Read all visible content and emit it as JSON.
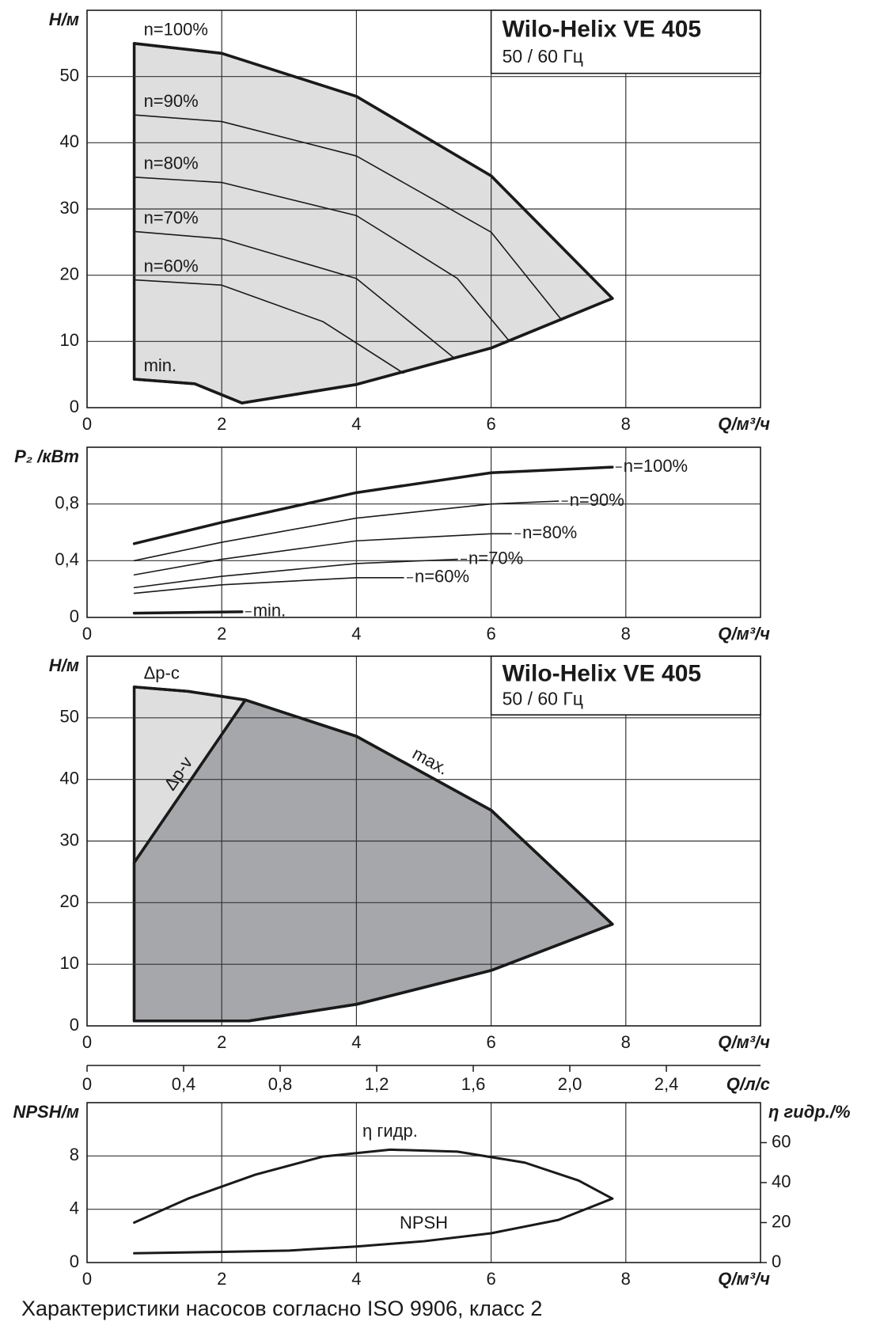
{
  "footer": "Характеристики насосов согласно ISO 9906, класс 2",
  "chart_data": [
    {
      "type": "line",
      "title": "Wilo-Helix VE 405",
      "subtitle": "50 / 60 Гц",
      "xlabel": "Q/м³/ч",
      "ylabel": "H/м",
      "xlim": [
        0,
        10
      ],
      "xticks": [
        0,
        2,
        4,
        6,
        8
      ],
      "ylim": [
        0,
        60
      ],
      "yticks": [
        0,
        10,
        20,
        30,
        40,
        50
      ],
      "grid": true,
      "line_color": "#1a1a1a",
      "areas": [
        {
          "color": "#dedede",
          "parts": [
            {
              "series": 0
            },
            {
              "series": 6,
              "reverse": true
            },
            {
              "series": 5,
              "reverse": true
            }
          ]
        }
      ],
      "series": [
        {
          "name": "n=100%",
          "label_pos": "start",
          "width": 3.5,
          "x": [
            0.7,
            2,
            4,
            6,
            7.8
          ],
          "values": [
            55,
            53.5,
            47,
            35,
            16.5
          ]
        },
        {
          "name": "n=90%",
          "label_pos": "start",
          "width": 1.6,
          "x": [
            0.7,
            2,
            4,
            6,
            7.05
          ],
          "values": [
            44.2,
            43.2,
            38,
            26.5,
            13.2
          ]
        },
        {
          "name": "n=80%",
          "label_pos": "start",
          "width": 1.6,
          "x": [
            0.7,
            2,
            4,
            5.5,
            6.25
          ],
          "values": [
            34.8,
            34,
            29,
            19.5,
            10.3
          ]
        },
        {
          "name": "n=70%",
          "label_pos": "start",
          "width": 1.6,
          "x": [
            0.7,
            2,
            4,
            5.45
          ],
          "values": [
            26.6,
            25.5,
            19.5,
            7.5
          ]
        },
        {
          "name": "n=60%",
          "label_pos": "start",
          "width": 1.6,
          "x": [
            0.7,
            2,
            3.5,
            4.7
          ],
          "values": [
            19.3,
            18.5,
            13,
            5.2
          ]
        },
        {
          "name": "min.",
          "label_pos": "start",
          "width": 3.5,
          "x": [
            0.7,
            1.6,
            2.3
          ],
          "values": [
            4.3,
            3.6,
            0.7
          ]
        },
        {
          "width": 3.5,
          "x": [
            2.3,
            4,
            6,
            7.8
          ],
          "values": [
            0.7,
            3.5,
            9,
            16.5
          ]
        }
      ]
    },
    {
      "type": "line",
      "xlabel": "Q/м³/ч",
      "ylabel": "P₂ /кВт",
      "xlim": [
        0,
        10
      ],
      "xticks": [
        0,
        2,
        4,
        6,
        8
      ],
      "ylim": [
        0,
        1.2
      ],
      "yticks": [
        0,
        {
          "value": 0.4,
          "label": "0,4"
        },
        {
          "value": 0.8,
          "label": "0,8"
        }
      ],
      "grid": true,
      "line_color": "#1a1a1a",
      "series": [
        {
          "name": "n=100%",
          "label_pos": "end",
          "width": 3.5,
          "x": [
            0.7,
            2,
            4,
            6,
            7.8
          ],
          "values": [
            0.52,
            0.67,
            0.88,
            1.02,
            1.06
          ]
        },
        {
          "name": "n=90%",
          "label_pos": "end",
          "width": 1.6,
          "x": [
            0.7,
            2,
            4,
            6,
            7.0
          ],
          "values": [
            0.4,
            0.53,
            0.7,
            0.8,
            0.82
          ]
        },
        {
          "name": "n=80%",
          "label_pos": "end",
          "width": 1.6,
          "x": [
            0.7,
            2,
            4,
            6,
            6.3
          ],
          "values": [
            0.3,
            0.41,
            0.54,
            0.59,
            0.59
          ]
        },
        {
          "name": "n=70%",
          "label_pos": "end",
          "width": 1.6,
          "x": [
            0.7,
            2,
            4,
            5.5
          ],
          "values": [
            0.21,
            0.29,
            0.38,
            0.41
          ]
        },
        {
          "name": "n=60%",
          "label_pos": "end",
          "width": 1.6,
          "x": [
            0.7,
            2,
            4,
            4.7
          ],
          "values": [
            0.17,
            0.23,
            0.28,
            0.28
          ]
        },
        {
          "name": "min.",
          "label_pos": "end",
          "width": 3.5,
          "x": [
            0.7,
            2.3
          ],
          "values": [
            0.03,
            0.04
          ]
        }
      ]
    },
    {
      "type": "line",
      "title": "Wilo-Helix VE 405",
      "subtitle": "50 / 60 Гц",
      "xlabel": "Q/м³/ч",
      "ylabel": "H/м",
      "xlim": [
        0,
        10
      ],
      "xticks": [
        0,
        2,
        4,
        6,
        8
      ],
      "ylim": [
        0,
        60
      ],
      "yticks": [
        0,
        10,
        20,
        30,
        40,
        50
      ],
      "grid": true,
      "line_color": "#1a1a1a",
      "x2label": "Q/л/с",
      "x2lim": [
        0,
        2.79
      ],
      "x2ticks": [
        0,
        {
          "value": 0.4,
          "label": "0,4"
        },
        {
          "value": 0.8,
          "label": "0,8"
        },
        {
          "value": 1.2,
          "label": "1,2"
        },
        {
          "value": 1.6,
          "label": "1,6"
        },
        {
          "value": 2.0,
          "label": "2,0"
        },
        {
          "value": 2.4,
          "label": "2,4"
        }
      ],
      "areas": [
        {
          "color": "#dedede",
          "parts": [
            {
              "series": 0
            },
            {
              "series": 1
            },
            {
              "series": 3,
              "reverse": true
            }
          ]
        },
        {
          "color": "#a5a7ab",
          "parts": [
            {
              "series": 2
            },
            {
              "series": 1
            },
            {
              "series": 3,
              "reverse": true
            }
          ]
        }
      ],
      "series": [
        {
          "name": "Δp-c",
          "label_pos": "start",
          "width": 3.5,
          "x": [
            0.7,
            1.5,
            2.35
          ],
          "values": [
            55,
            54.3,
            52.9
          ]
        },
        {
          "name": "max.",
          "label_pos": "along",
          "width": 3.5,
          "x": [
            2.35,
            4,
            6,
            7.8
          ],
          "values": [
            52.9,
            47,
            35,
            16.5
          ]
        },
        {
          "name": "Δp-v",
          "label_pos": "along",
          "width": 3.5,
          "x": [
            0.7,
            2.35
          ],
          "values": [
            26.5,
            52.9
          ]
        },
        {
          "width": 3.5,
          "x": [
            0.7,
            2.4,
            4,
            6,
            7.8
          ],
          "values": [
            0.8,
            0.8,
            3.5,
            9,
            16.5
          ]
        }
      ]
    },
    {
      "type": "line",
      "xlabel": "Q/м³/ч",
      "ylabel": "NPSH/м",
      "y2label": "η гидр./%",
      "xlim": [
        0,
        10
      ],
      "xticks": [
        0,
        2,
        4,
        6,
        8
      ],
      "ylim": [
        0,
        12
      ],
      "yticks": [
        0,
        4,
        8
      ],
      "y2lim": [
        0,
        80
      ],
      "y2ticks": [
        0,
        20,
        40,
        60
      ],
      "grid": true,
      "line_color": "#1a1a1a",
      "series": [
        {
          "name": "η гидр.",
          "axis": "y2",
          "label_pos": "above",
          "width": 3,
          "x": [
            0.7,
            1.5,
            2.5,
            3.5,
            4.5,
            5.5,
            6.5,
            7.3,
            7.8
          ],
          "values": [
            20,
            32,
            44,
            53,
            56.5,
            55.5,
            50,
            41,
            32
          ]
        },
        {
          "name": "NPSH",
          "label_pos": "above",
          "width": 3,
          "x": [
            0.7,
            2,
            3,
            4,
            5,
            6,
            7,
            7.8
          ],
          "values": [
            0.7,
            0.8,
            0.9,
            1.2,
            1.6,
            2.2,
            3.2,
            4.8
          ]
        }
      ]
    }
  ]
}
